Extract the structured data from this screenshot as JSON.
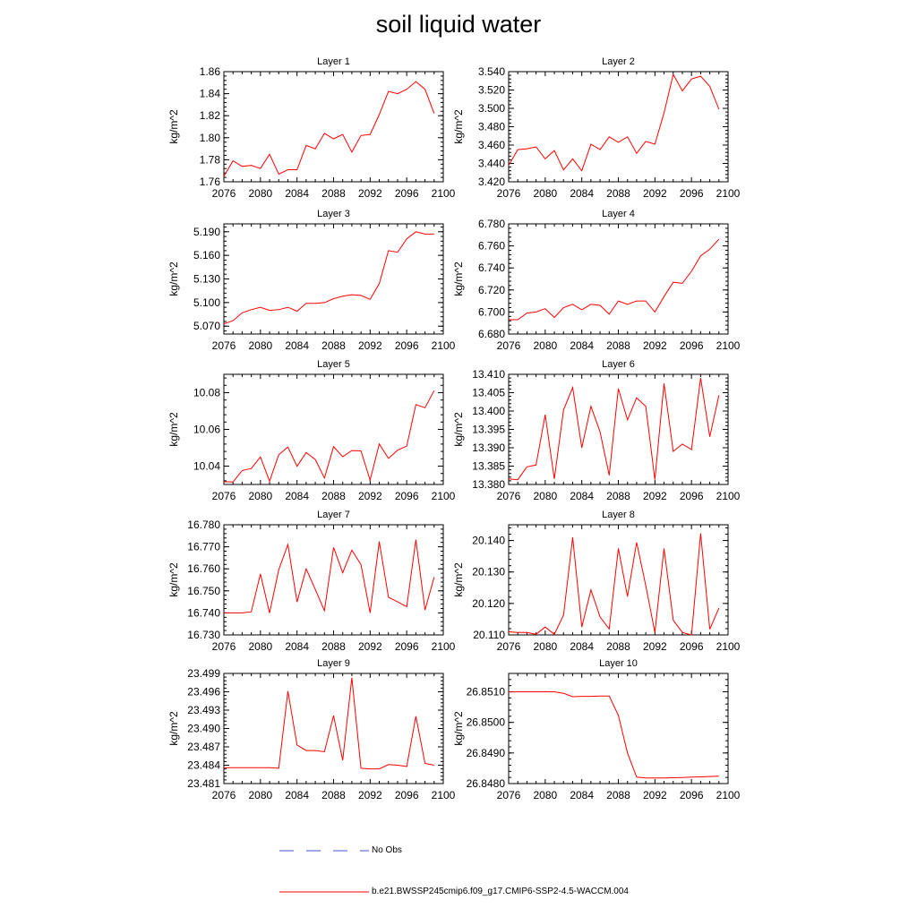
{
  "title": "soil liquid water",
  "legend": [
    {
      "label": "No Obs",
      "color": "#4455cc",
      "style": "dashed"
    },
    {
      "label": "b.e21.BWSSP245cmip6.f09_g17.CMIP6-SSP2-4.5-WACCM.004",
      "color": "#ff0000",
      "style": "solid"
    }
  ],
  "chart_data": [
    {
      "type": "line",
      "title": "Layer 1",
      "xlabel": "",
      "ylabel": "kg/m^2",
      "xlim": [
        2076,
        2100
      ],
      "ylim": [
        1.76,
        1.86
      ],
      "xticks": [
        "2076",
        "2080",
        "2084",
        "2088",
        "2092",
        "2096",
        "2100"
      ],
      "yticks": [
        "1.76",
        "1.78",
        "1.80",
        "1.82",
        "1.84",
        "1.86"
      ],
      "x": [
        2076,
        2077,
        2078,
        2079,
        2080,
        2081,
        2082,
        2083,
        2084,
        2085,
        2086,
        2087,
        2088,
        2089,
        2090,
        2091,
        2092,
        2093,
        2094,
        2095,
        2096,
        2097,
        2098,
        2099
      ],
      "series": [
        {
          "color": "#ff0000",
          "values": [
            1.765,
            1.779,
            1.774,
            1.775,
            1.772,
            1.785,
            1.767,
            1.771,
            1.771,
            1.793,
            1.79,
            1.804,
            1.799,
            1.803,
            1.787,
            1.802,
            1.803,
            1.821,
            1.842,
            1.84,
            1.844,
            1.851,
            1.844,
            1.822
          ]
        }
      ]
    },
    {
      "type": "line",
      "title": "Layer 2",
      "xlabel": "",
      "ylabel": "kg/m^2",
      "xlim": [
        2076,
        2100
      ],
      "ylim": [
        3.42,
        3.54
      ],
      "xticks": [
        "2076",
        "2080",
        "2084",
        "2088",
        "2092",
        "2096",
        "2100"
      ],
      "yticks": [
        "3.420",
        "3.440",
        "3.460",
        "3.480",
        "3.500",
        "3.520",
        "3.540"
      ],
      "x": [
        2076,
        2077,
        2078,
        2079,
        2080,
        2081,
        2082,
        2083,
        2084,
        2085,
        2086,
        2087,
        2088,
        2089,
        2090,
        2091,
        2092,
        2093,
        2094,
        2095,
        2096,
        2097,
        2098,
        2099
      ],
      "series": [
        {
          "color": "#ff0000",
          "values": [
            3.438,
            3.455,
            3.456,
            3.458,
            3.445,
            3.454,
            3.433,
            3.445,
            3.432,
            3.461,
            3.455,
            3.469,
            3.463,
            3.469,
            3.451,
            3.464,
            3.461,
            3.495,
            3.537,
            3.519,
            3.532,
            3.535,
            3.524,
            3.499
          ]
        }
      ]
    },
    {
      "type": "line",
      "title": "Layer 3",
      "xlabel": "",
      "ylabel": "kg/m^2",
      "xlim": [
        2076,
        2100
      ],
      "ylim": [
        5.06,
        5.2
      ],
      "xticks": [
        "2076",
        "2080",
        "2084",
        "2088",
        "2092",
        "2096",
        "2100"
      ],
      "yticks": [
        "5.070",
        "5.100",
        "5.130",
        "5.160",
        "5.190"
      ],
      "x": [
        2076,
        2077,
        2078,
        2079,
        2080,
        2081,
        2082,
        2083,
        2084,
        2085,
        2086,
        2087,
        2088,
        2089,
        2090,
        2091,
        2092,
        2093,
        2094,
        2095,
        2096,
        2097,
        2098,
        2099
      ],
      "series": [
        {
          "color": "#ff0000",
          "values": [
            5.073,
            5.077,
            5.087,
            5.091,
            5.094,
            5.09,
            5.091,
            5.094,
            5.089,
            5.099,
            5.099,
            5.1,
            5.105,
            5.108,
            5.11,
            5.109,
            5.104,
            5.124,
            5.166,
            5.164,
            5.181,
            5.19,
            5.187,
            5.187
          ]
        }
      ]
    },
    {
      "type": "line",
      "title": "Layer 4",
      "xlabel": "",
      "ylabel": "kg/m^2",
      "xlim": [
        2076,
        2100
      ],
      "ylim": [
        6.68,
        6.78
      ],
      "xticks": [
        "2076",
        "2080",
        "2084",
        "2088",
        "2092",
        "2096",
        "2100"
      ],
      "yticks": [
        "6.680",
        "6.700",
        "6.720",
        "6.740",
        "6.760",
        "6.780"
      ],
      "x": [
        2076,
        2077,
        2078,
        2079,
        2080,
        2081,
        2082,
        2083,
        2084,
        2085,
        2086,
        2087,
        2088,
        2089,
        2090,
        2091,
        2092,
        2093,
        2094,
        2095,
        2096,
        2097,
        2098,
        2099
      ],
      "series": [
        {
          "color": "#ff0000",
          "values": [
            6.693,
            6.693,
            6.699,
            6.7,
            6.703,
            6.695,
            6.704,
            6.707,
            6.702,
            6.707,
            6.706,
            6.698,
            6.71,
            6.707,
            6.71,
            6.71,
            6.7,
            6.714,
            6.727,
            6.726,
            6.737,
            6.751,
            6.757,
            6.766
          ]
        }
      ]
    },
    {
      "type": "line",
      "title": "Layer 5",
      "xlabel": "",
      "ylabel": "kg/m^2",
      "xlim": [
        2076,
        2100
      ],
      "ylim": [
        10.03,
        10.09
      ],
      "xticks": [
        "2076",
        "2080",
        "2084",
        "2088",
        "2092",
        "2096",
        "2100"
      ],
      "yticks": [
        "10.04",
        "10.06",
        "10.08"
      ],
      "x": [
        2076,
        2077,
        2078,
        2079,
        2080,
        2081,
        2082,
        2083,
        2084,
        2085,
        2086,
        2087,
        2088,
        2089,
        2090,
        2091,
        2092,
        2093,
        2094,
        2095,
        2096,
        2097,
        2098,
        2099
      ],
      "series": [
        {
          "color": "#ff0000",
          "values": [
            10.0315,
            10.0313,
            10.0376,
            10.0387,
            10.045,
            10.0318,
            10.0462,
            10.0504,
            10.0399,
            10.0474,
            10.0436,
            10.0335,
            10.0506,
            10.0451,
            10.0485,
            10.0483,
            10.0324,
            10.0521,
            10.0442,
            10.0487,
            10.0509,
            10.0735,
            10.0718,
            10.0811
          ]
        }
      ]
    },
    {
      "type": "line",
      "title": "Layer 6",
      "xlabel": "",
      "ylabel": "kg/m^2",
      "xlim": [
        2076,
        2100
      ],
      "ylim": [
        13.38,
        13.41
      ],
      "xticks": [
        "2076",
        "2080",
        "2084",
        "2088",
        "2092",
        "2096",
        "2100"
      ],
      "yticks": [
        "13.380",
        "13.385",
        "13.390",
        "13.395",
        "13.400",
        "13.405",
        "13.410"
      ],
      "x": [
        2076,
        2077,
        2078,
        2079,
        2080,
        2081,
        2082,
        2083,
        2084,
        2085,
        2086,
        2087,
        2088,
        2089,
        2090,
        2091,
        2092,
        2093,
        2094,
        2095,
        2096,
        2097,
        2098,
        2099
      ],
      "series": [
        {
          "color": "#ff0000",
          "values": [
            13.3815,
            13.3813,
            13.3848,
            13.3853,
            13.399,
            13.3815,
            13.4003,
            13.4064,
            13.39,
            13.4013,
            13.3943,
            13.3825,
            13.4061,
            13.3976,
            13.4036,
            13.4013,
            13.3813,
            13.4075,
            13.389,
            13.391,
            13.3895,
            13.409,
            13.393,
            13.4043
          ]
        }
      ]
    },
    {
      "type": "line",
      "title": "Layer 7",
      "xlabel": "",
      "ylabel": "kg/m^2",
      "xlim": [
        2076,
        2100
      ],
      "ylim": [
        16.73,
        16.78
      ],
      "xticks": [
        "2076",
        "2080",
        "2084",
        "2088",
        "2092",
        "2096",
        "2100"
      ],
      "yticks": [
        "16.730",
        "16.740",
        "16.750",
        "16.760",
        "16.770",
        "16.780"
      ],
      "x": [
        2076,
        2077,
        2078,
        2079,
        2080,
        2081,
        2082,
        2083,
        2084,
        2085,
        2086,
        2087,
        2088,
        2089,
        2090,
        2091,
        2092,
        2093,
        2094,
        2095,
        2096,
        2097,
        2098,
        2099
      ],
      "series": [
        {
          "color": "#ff0000",
          "values": [
            16.74,
            16.74,
            16.74,
            16.7405,
            16.7577,
            16.74,
            16.7596,
            16.771,
            16.7449,
            16.76,
            16.7506,
            16.741,
            16.7697,
            16.7582,
            16.7685,
            16.7619,
            16.74,
            16.7724,
            16.7471,
            16.745,
            16.7428,
            16.7732,
            16.7413,
            16.7562
          ]
        }
      ]
    },
    {
      "type": "line",
      "title": "Layer 8",
      "xlabel": "",
      "ylabel": "kg/m^2",
      "xlim": [
        2076,
        2100
      ],
      "ylim": [
        20.11,
        20.145
      ],
      "xticks": [
        "2076",
        "2080",
        "2084",
        "2088",
        "2092",
        "2096",
        "2100"
      ],
      "yticks": [
        "20.110",
        "20.120",
        "20.130",
        "20.140"
      ],
      "x": [
        2076,
        2077,
        2078,
        2079,
        2080,
        2081,
        2082,
        2083,
        2084,
        2085,
        2086,
        2087,
        2088,
        2089,
        2090,
        2091,
        2092,
        2093,
        2094,
        2095,
        2096,
        2097,
        2098,
        2099
      ],
      "series": [
        {
          "color": "#ff0000",
          "values": [
            20.111,
            20.1108,
            20.1108,
            20.1102,
            20.1125,
            20.1102,
            20.1163,
            20.141,
            20.1125,
            20.1243,
            20.1157,
            20.1119,
            20.1375,
            20.1222,
            20.1394,
            20.1257,
            20.1108,
            20.1375,
            20.1147,
            20.1108,
            20.11,
            20.1423,
            20.1118,
            20.1185
          ]
        }
      ]
    },
    {
      "type": "line",
      "title": "Layer 9",
      "xlabel": "",
      "ylabel": "kg/m^2",
      "xlim": [
        2076,
        2100
      ],
      "ylim": [
        23.481,
        23.499
      ],
      "xticks": [
        "2076",
        "2080",
        "2084",
        "2088",
        "2092",
        "2096",
        "2100"
      ],
      "yticks": [
        "23.481",
        "23.484",
        "23.487",
        "23.490",
        "23.493",
        "23.496",
        "23.499"
      ],
      "x": [
        2076,
        2077,
        2078,
        2079,
        2080,
        2081,
        2082,
        2083,
        2084,
        2085,
        2086,
        2087,
        2088,
        2089,
        2090,
        2091,
        2092,
        2093,
        2094,
        2095,
        2096,
        2097,
        2098,
        2099
      ],
      "series": [
        {
          "color": "#ff0000",
          "values": [
            23.4836,
            23.4836,
            23.4836,
            23.4836,
            23.4836,
            23.4836,
            23.4835,
            23.4961,
            23.4873,
            23.4864,
            23.4864,
            23.4862,
            23.4921,
            23.4848,
            23.4983,
            23.4835,
            23.4834,
            23.4834,
            23.4841,
            23.484,
            23.4838,
            23.492,
            23.4843,
            23.484
          ]
        }
      ]
    },
    {
      "type": "line",
      "title": "Layer 10",
      "xlabel": "",
      "ylabel": "kg/m^2",
      "xlim": [
        2076,
        2100
      ],
      "ylim": [
        26.848,
        26.8516
      ],
      "xticks": [
        "2076",
        "2080",
        "2084",
        "2088",
        "2092",
        "2096",
        "2100"
      ],
      "yticks": [
        "26.8480",
        "26.8490",
        "26.8500",
        "26.8510"
      ],
      "x": [
        2076,
        2077,
        2078,
        2079,
        2080,
        2081,
        2082,
        2083,
        2084,
        2085,
        2086,
        2087,
        2088,
        2089,
        2090,
        2091,
        2092,
        2093,
        2094,
        2095,
        2096,
        2097,
        2098,
        2099
      ],
      "series": [
        {
          "color": "#ff0000",
          "values": [
            26.85099,
            26.851,
            26.851,
            26.851,
            26.851,
            26.851,
            26.85095,
            26.85084,
            26.85085,
            26.85085,
            26.85086,
            26.85086,
            26.85023,
            26.849,
            26.84821,
            26.84818,
            26.84818,
            26.84818,
            26.84819,
            26.8482,
            26.84821,
            26.84822,
            26.84823,
            26.84824
          ]
        }
      ]
    }
  ]
}
